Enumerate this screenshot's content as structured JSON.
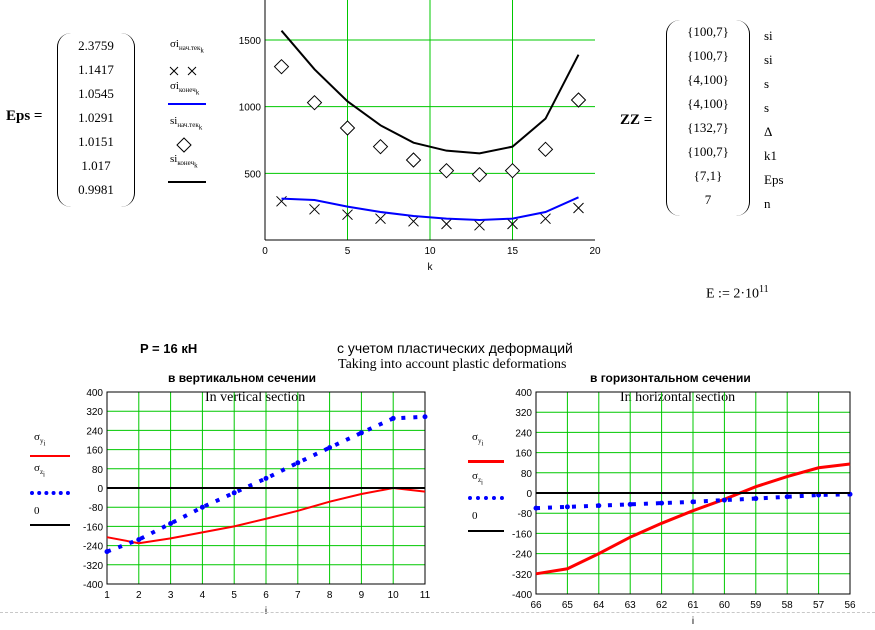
{
  "eps": {
    "label": "Eps =",
    "values": [
      "2.3759",
      "1.1417",
      "1.0545",
      "1.0291",
      "1.0151",
      "1.017",
      "0.9981"
    ]
  },
  "zz": {
    "label": "ZZ =",
    "values": [
      "{100,7}",
      "{100,7}",
      "{4,100}",
      "{4,100}",
      "{132,7}",
      "{100,7}",
      "{7,1}",
      "7"
    ],
    "names": [
      "ѕi",
      "si",
      "ѕ",
      "s",
      "Δ",
      "k1",
      "Eps",
      "n"
    ]
  },
  "e_def": {
    "text": "E := 2·10",
    "exp": "11"
  },
  "pressure": {
    "label": "P = 16 кН"
  },
  "headline": {
    "ru": "с учетом пластических деформаций",
    "en": "Taking into account plastic deformations"
  },
  "top_legend": [
    {
      "main": "σi",
      "sub": "нач.тек",
      "sub2": "k",
      "style": "cross"
    },
    {
      "main": "σi",
      "sub": "конеч",
      "sub2": "k",
      "style": "blue-line"
    },
    {
      "main": "si",
      "sub": "нач.тек",
      "sub2": "k",
      "style": "diamond"
    },
    {
      "main": "si",
      "sub": "конеч",
      "sub2": "k",
      "style": "black-line"
    }
  ],
  "bottom_legend": [
    {
      "main": "σ",
      "sub": "y",
      "sub2": "i",
      "style": "red-line"
    },
    {
      "main": "σ",
      "sub": "z",
      "sub2": "i",
      "style": "blue-dots"
    },
    {
      "main": "0",
      "sub": "",
      "sub2": "",
      "style": "black-line"
    }
  ],
  "chart_data": [
    {
      "type": "line",
      "xlabel": "k",
      "ylabel": "",
      "xlim": [
        0,
        20
      ],
      "ylim": [
        0,
        1800
      ],
      "xticks": [
        0,
        5,
        10,
        15,
        20
      ],
      "yticks": [
        500,
        1000,
        1500
      ],
      "grid": true,
      "series": [
        {
          "name": "σi нач.тек",
          "style": "cross",
          "color": "#000000",
          "x": [
            1,
            3,
            5,
            7,
            9,
            11,
            13,
            15,
            17,
            19
          ],
          "y": [
            290,
            230,
            190,
            160,
            140,
            120,
            110,
            120,
            160,
            240
          ]
        },
        {
          "name": "σi конеч",
          "style": "line",
          "color": "#0000ff",
          "x": [
            1,
            3,
            5,
            7,
            9,
            11,
            13,
            15,
            17,
            19
          ],
          "y": [
            310,
            300,
            250,
            210,
            180,
            160,
            150,
            160,
            210,
            320
          ]
        },
        {
          "name": "si нач.тек",
          "style": "diamond",
          "color": "#000000",
          "x": [
            1,
            3,
            5,
            7,
            9,
            11,
            13,
            15,
            17,
            19
          ],
          "y": [
            1300,
            1030,
            840,
            700,
            600,
            520,
            490,
            520,
            680,
            1050
          ]
        },
        {
          "name": "si конеч",
          "style": "line",
          "color": "#000000",
          "x": [
            1,
            3,
            5,
            7,
            9,
            11,
            13,
            15,
            17,
            19
          ],
          "y": [
            1570,
            1280,
            1040,
            860,
            730,
            670,
            650,
            700,
            910,
            1390
          ]
        }
      ]
    },
    {
      "type": "line",
      "title": "в вертикальном сечении",
      "subtitle": "In vertical section",
      "xlabel": "i",
      "ylabel": "",
      "xlim": [
        1,
        11
      ],
      "ylim": [
        -400,
        400
      ],
      "xticks": [
        1,
        2,
        3,
        4,
        5,
        6,
        7,
        8,
        9,
        10,
        11
      ],
      "yticks": [
        -400,
        -320,
        -240,
        -160,
        -80,
        0,
        80,
        160,
        240,
        320,
        400
      ],
      "grid": true,
      "series": [
        {
          "name": "σy",
          "style": "line",
          "color": "#ff0000",
          "x": [
            1,
            2,
            3,
            4,
            5,
            6,
            7,
            8,
            9,
            10,
            11
          ],
          "y": [
            -205,
            -230,
            -210,
            -185,
            -160,
            -128,
            -95,
            -57,
            -25,
            0,
            -15
          ]
        },
        {
          "name": "σz",
          "style": "dots",
          "color": "#0000ff",
          "x": [
            1,
            2,
            3,
            4,
            5,
            6,
            7,
            8,
            9,
            10,
            11
          ],
          "y": [
            -265,
            -215,
            -148,
            -80,
            -20,
            40,
            105,
            168,
            230,
            290,
            297
          ]
        },
        {
          "name": "0",
          "style": "line",
          "color": "#000000",
          "x": [
            1,
            11
          ],
          "y": [
            0,
            0
          ]
        }
      ]
    },
    {
      "type": "line",
      "title": "в горизонтальном сечении",
      "subtitle": "In horizontal section",
      "xlabel": "i",
      "ylabel": "",
      "xlim": [
        66,
        56
      ],
      "ylim": [
        -400,
        400
      ],
      "xticks": [
        66,
        65,
        64,
        63,
        62,
        61,
        60,
        59,
        58,
        57,
        56
      ],
      "yticks": [
        -400,
        -320,
        -240,
        -160,
        -80,
        0,
        80,
        160,
        240,
        320,
        400
      ],
      "grid": true,
      "series": [
        {
          "name": "σy",
          "style": "line",
          "color": "#ff0000",
          "x": [
            66,
            65,
            64,
            63,
            62,
            61,
            60,
            59,
            58,
            57,
            56
          ],
          "y": [
            -320,
            -300,
            -240,
            -175,
            -120,
            -70,
            -25,
            25,
            65,
            100,
            115
          ]
        },
        {
          "name": "σz",
          "style": "dots",
          "color": "#0000ff",
          "x": [
            66,
            65,
            64,
            63,
            62,
            61,
            60,
            59,
            58,
            57,
            56
          ],
          "y": [
            -60,
            -55,
            -50,
            -45,
            -40,
            -35,
            -28,
            -22,
            -15,
            -8,
            -5
          ]
        },
        {
          "name": "0",
          "style": "line",
          "color": "#000000",
          "x": [
            66,
            56
          ],
          "y": [
            0,
            0
          ]
        }
      ]
    }
  ]
}
